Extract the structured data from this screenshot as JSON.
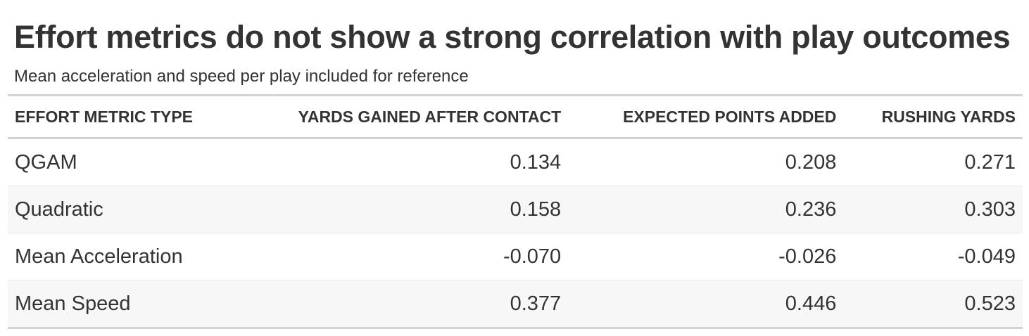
{
  "title": "Effort metrics do not show a strong correlation with play outcomes",
  "subtitle": "Mean acceleration and speed per play included for reference",
  "columns": [
    "EFFORT METRIC TYPE",
    "YARDS GAINED AFTER CONTACT",
    "EXPECTED POINTS ADDED",
    "RUSHING YARDS"
  ],
  "rows": [
    [
      "QGAM",
      "0.134",
      "0.208",
      "0.271"
    ],
    [
      "Quadratic",
      "0.158",
      "0.236",
      "0.303"
    ],
    [
      "Mean Acceleration",
      "-0.070",
      "-0.026",
      "-0.049"
    ],
    [
      "Mean Speed",
      "0.377",
      "0.446",
      "0.523"
    ]
  ],
  "colors": {
    "text": "#333333",
    "rule": "#d3d3d3",
    "stripe": "#f7f7f7"
  }
}
